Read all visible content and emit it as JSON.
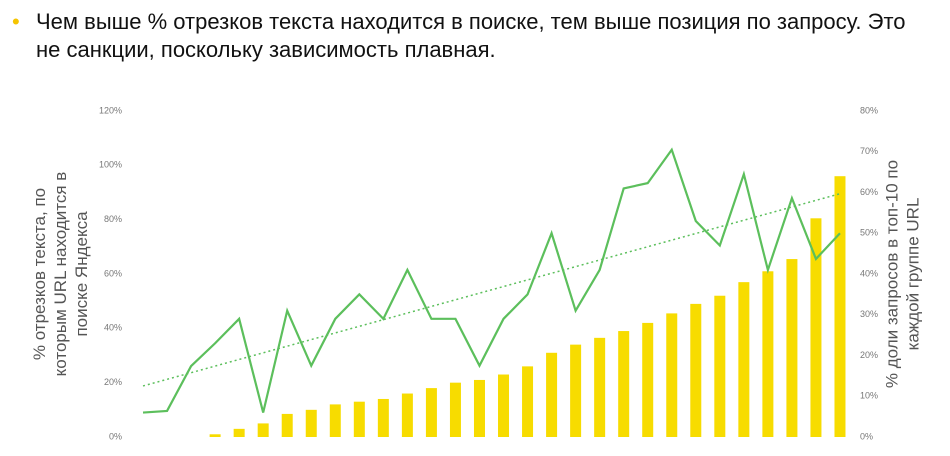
{
  "chart_data": {
    "type": "combo",
    "title": "Чем выше % отрезков текста находится в поиске, тем выше позиция по запросу. Это не санкции, поскольку зависимость плавная.",
    "y_label": [
      "% отрезков текста, по",
      "которым URL находится в",
      "поиске Яндекса"
    ],
    "y2_label": [
      "% доли запросов в топ-10 по",
      "каждой группе URL"
    ],
    "categories": [
      null,
      null,
      null,
      null,
      null,
      null,
      null,
      null,
      null,
      null,
      null,
      null,
      null,
      null,
      null,
      null,
      null,
      null,
      null,
      null,
      null,
      null,
      null,
      null,
      null,
      null,
      null,
      null,
      null,
      null
    ],
    "ylim": [
      0,
      120
    ],
    "yticks": [
      {
        "value": 0,
        "label": "0%"
      },
      {
        "value": 20,
        "label": "20%"
      },
      {
        "value": 40,
        "label": "40%"
      },
      {
        "value": 60,
        "label": "60%"
      },
      {
        "value": 80,
        "label": "80%"
      },
      {
        "value": 100,
        "label": "100%"
      },
      {
        "value": 120,
        "label": "120%"
      }
    ],
    "y2lim": [
      0,
      80
    ],
    "y2ticks": [
      {
        "value": 0,
        "label": "0%"
      },
      {
        "value": 10,
        "label": "10%"
      },
      {
        "value": 20,
        "label": "20%"
      },
      {
        "value": 30,
        "label": "30%"
      },
      {
        "value": 40,
        "label": "40%"
      },
      {
        "value": 50,
        "label": "50%"
      },
      {
        "value": 60,
        "label": "60%"
      },
      {
        "value": 70,
        "label": "70%"
      },
      {
        "value": 80,
        "label": "80%"
      }
    ],
    "series": [
      {
        "type": "bar",
        "axis": "y",
        "color": "#f7dc00",
        "values": [
          0,
          0,
          0,
          1,
          3,
          5,
          8.5,
          10,
          12,
          13,
          14,
          16,
          18,
          20,
          21,
          23,
          26,
          31,
          34,
          36.5,
          39,
          42,
          45.5,
          49,
          52,
          57,
          61,
          65.5,
          80.5,
          96
        ]
      },
      {
        "type": "line",
        "axis": "y2",
        "color": "#5cbf5c",
        "trendline": "linear",
        "values": [
          6,
          6.4,
          17.4,
          23,
          29,
          6,
          31,
          17.5,
          29,
          35,
          29,
          41,
          29,
          29,
          17.5,
          29,
          35,
          50,
          31,
          41,
          61,
          62.3,
          70.5,
          53,
          47,
          64.5,
          41,
          58.6,
          43.7,
          50
        ]
      }
    ]
  }
}
